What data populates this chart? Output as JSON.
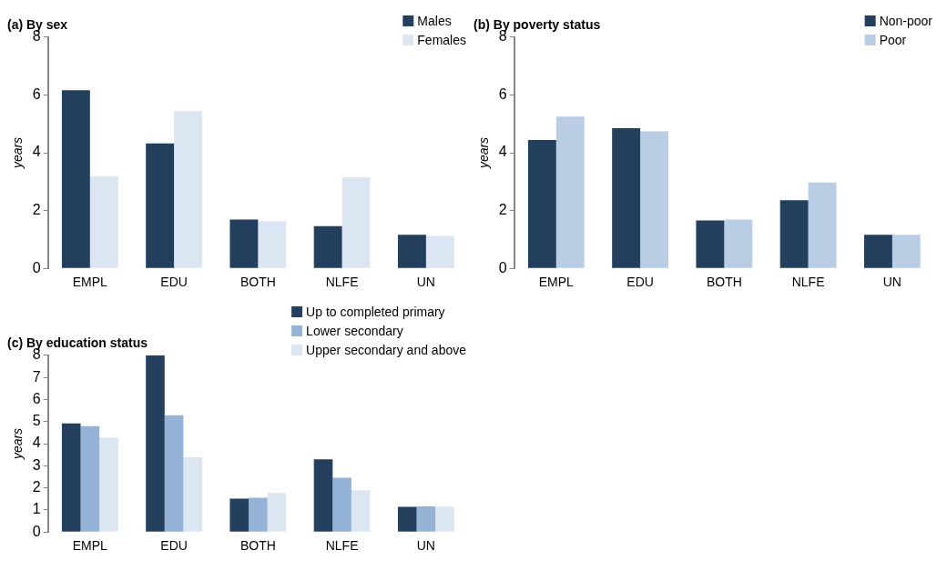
{
  "chart_data": [
    {
      "type": "bar",
      "title": "(a) By sex",
      "ylabel": "years",
      "categories": [
        "EMPL",
        "EDU",
        "BOTH",
        "NLFE",
        "UN"
      ],
      "ylim": [
        0,
        8
      ],
      "yticks": [
        0,
        2,
        4,
        6,
        8
      ],
      "grid": false,
      "legend": "top right",
      "series": [
        {
          "name": "Males",
          "color": "#243f5e",
          "values": [
            6.16,
            4.32,
            1.69,
            1.46,
            1.16
          ]
        },
        {
          "name": "Females",
          "color": "#dce6f2",
          "values": [
            3.18,
            5.44,
            1.63,
            3.15,
            1.12
          ]
        }
      ]
    },
    {
      "type": "bar",
      "title": "(b) By poverty status",
      "ylabel": "years",
      "categories": [
        "EMPL",
        "EDU",
        "BOTH",
        "NLFE",
        "UN"
      ],
      "ylim": [
        0,
        8
      ],
      "yticks": [
        0,
        2,
        4,
        6,
        8
      ],
      "grid": false,
      "legend": "top right",
      "series": [
        {
          "name": "Non-poor",
          "color": "#243f5e",
          "values": [
            4.44,
            4.85,
            1.66,
            2.36,
            1.16
          ]
        },
        {
          "name": "Poor",
          "color": "#b9cde5",
          "values": [
            5.25,
            4.74,
            1.69,
            2.97,
            1.16
          ]
        }
      ]
    },
    {
      "type": "bar",
      "title": "(c) By education status",
      "ylabel": "years",
      "categories": [
        "EMPL",
        "EDU",
        "BOTH",
        "NLFE",
        "UN"
      ],
      "ylim": [
        0,
        8
      ],
      "yticks": [
        0,
        1,
        2,
        3,
        4,
        5,
        6,
        7,
        8
      ],
      "grid": false,
      "legend": "top right",
      "series": [
        {
          "name": "Up to completed primary",
          "color": "#243f5e",
          "values": [
            4.92,
            8.0,
            1.51,
            3.29,
            1.14
          ]
        },
        {
          "name": "Lower secondary",
          "color": "#95b3d7",
          "values": [
            4.79,
            5.29,
            1.55,
            2.46,
            1.16
          ]
        },
        {
          "name": "Upper secondary and above",
          "color": "#dce6f2",
          "values": [
            4.27,
            3.38,
            1.77,
            1.89,
            1.14
          ]
        }
      ]
    }
  ]
}
